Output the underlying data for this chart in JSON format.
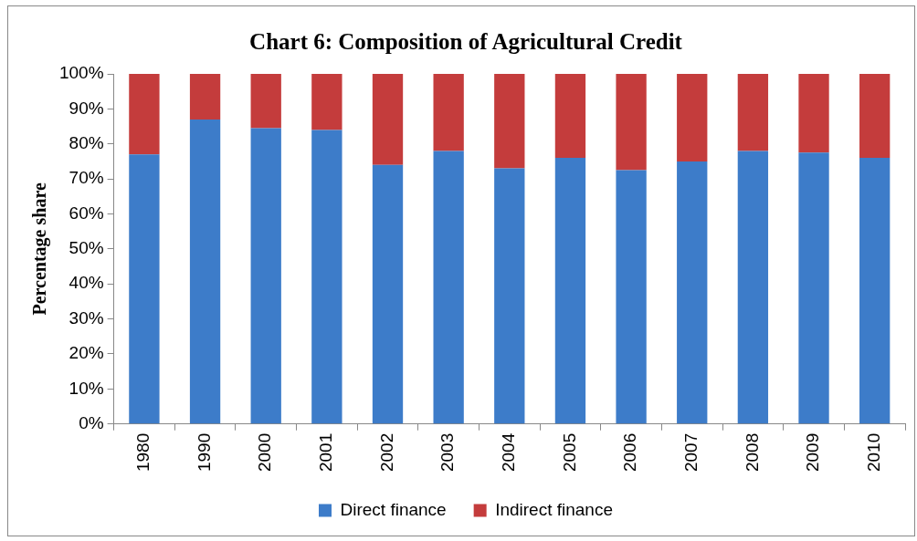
{
  "chart_data": {
    "type": "bar",
    "title": "Chart 6: Composition of Agricultural Credit",
    "ylabel": "Percentage share",
    "categories": [
      "1980",
      "1990",
      "2000",
      "2001",
      "2002",
      "2003",
      "2004",
      "2005",
      "2006",
      "2007",
      "2008",
      "2009",
      "2010"
    ],
    "stacked": true,
    "ylim": [
      0,
      100
    ],
    "yticks": [
      {
        "value": 0,
        "label": "0%"
      },
      {
        "value": 10,
        "label": "10%"
      },
      {
        "value": 20,
        "label": "20%"
      },
      {
        "value": 30,
        "label": "30%"
      },
      {
        "value": 40,
        "label": "40%"
      },
      {
        "value": 50,
        "label": "50%"
      },
      {
        "value": 60,
        "label": "60%"
      },
      {
        "value": 70,
        "label": "70%"
      },
      {
        "value": 80,
        "label": "80%"
      },
      {
        "value": 90,
        "label": "90%"
      },
      {
        "value": 100,
        "label": "100%"
      }
    ],
    "series": [
      {
        "name": "Direct finance",
        "color": "#3d7cc9",
        "values": [
          77,
          87,
          84.5,
          84,
          74,
          78,
          73,
          76,
          72.5,
          75,
          78,
          77.5,
          76
        ]
      },
      {
        "name": "Indirect finance",
        "color": "#c43c3c",
        "values": [
          23,
          13,
          15.5,
          16,
          26,
          22,
          27,
          24,
          27.5,
          25,
          22,
          22.5,
          24
        ]
      }
    ],
    "grid": false,
    "legend": "bottom"
  }
}
